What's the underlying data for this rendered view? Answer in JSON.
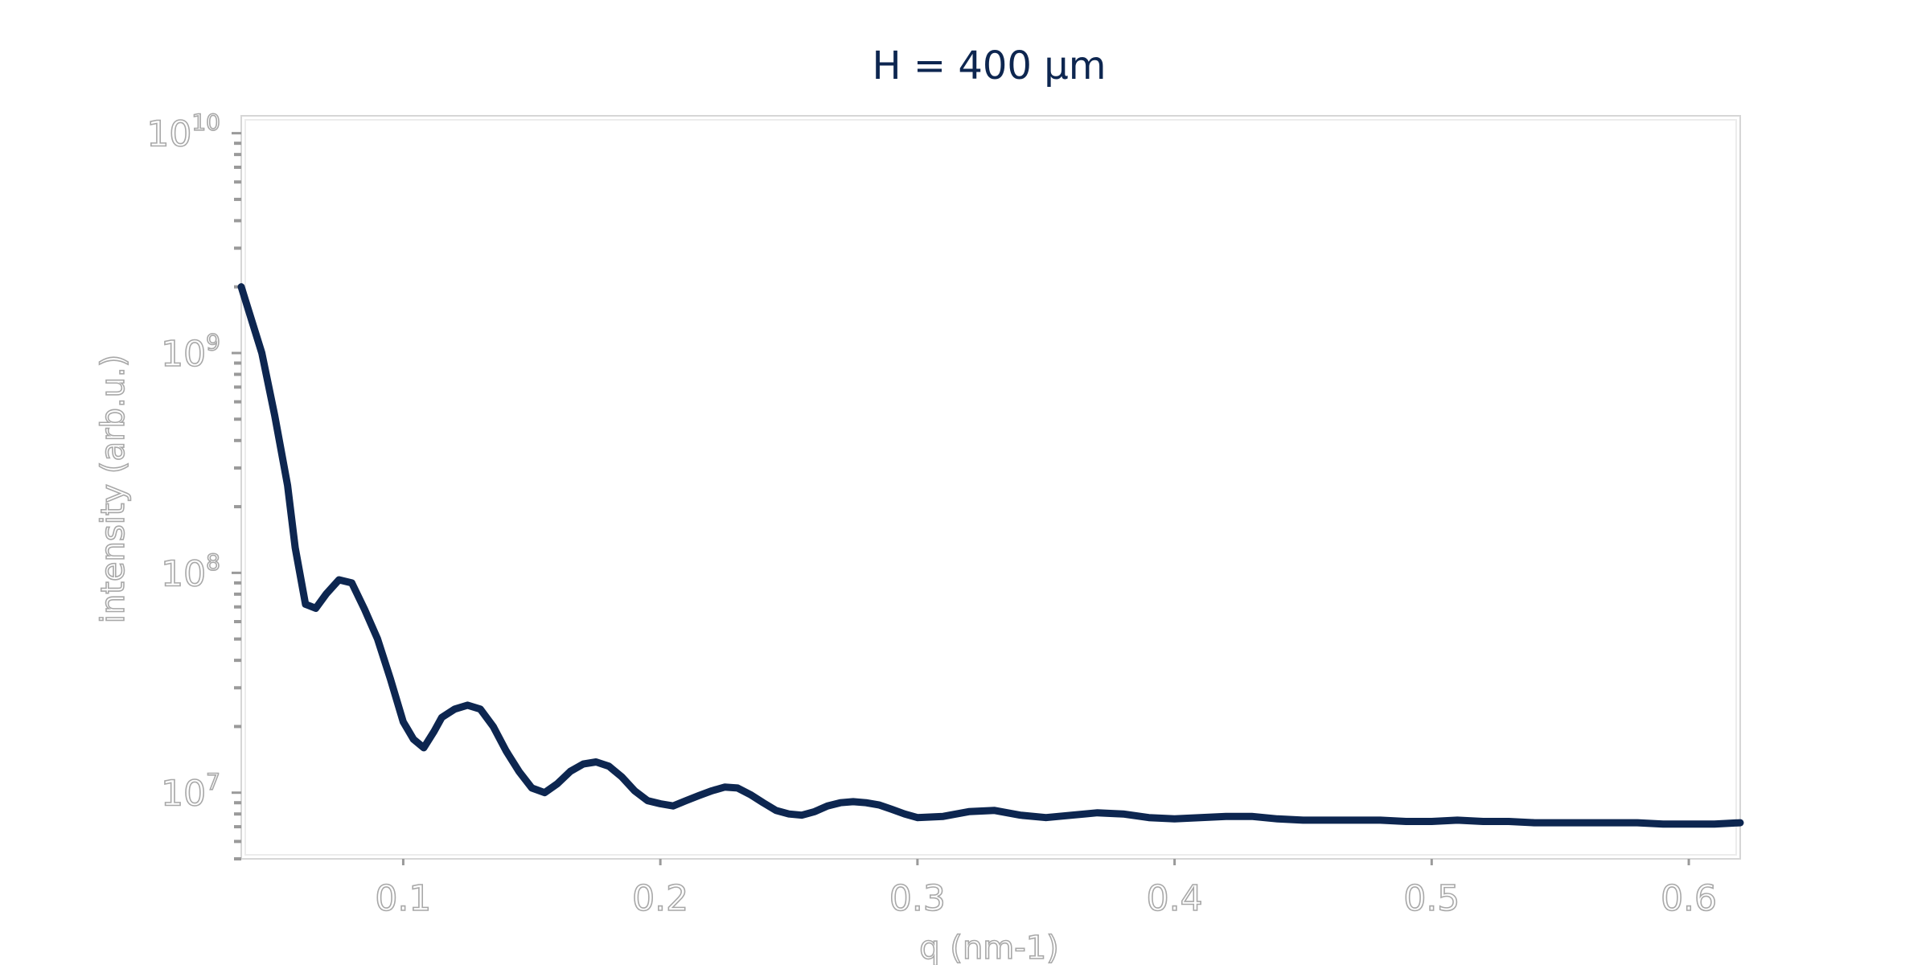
{
  "chart_data": {
    "type": "line",
    "title": "H = 400 μm",
    "xlabel": "q (nm-1)",
    "ylabel": "intensity (arb.u.)",
    "x_scale": "linear",
    "y_scale": "log",
    "xlim": [
      0.037,
      0.62
    ],
    "ylim": [
      5000000,
      12000000000
    ],
    "x_ticks": [
      {
        "value": 0.1,
        "label": "0.1"
      },
      {
        "value": 0.2,
        "label": "0.2"
      },
      {
        "value": 0.3,
        "label": "0.3"
      },
      {
        "value": 0.4,
        "label": "0.4"
      },
      {
        "value": 0.5,
        "label": "0.5"
      },
      {
        "value": 0.6,
        "label": "0.6"
      }
    ],
    "y_ticks": [
      {
        "value": 10000000,
        "base": "10",
        "exponent": "7"
      },
      {
        "value": 100000000,
        "base": "10",
        "exponent": "8"
      },
      {
        "value": 1000000000,
        "base": "10",
        "exponent": "9"
      },
      {
        "value": 10000000000,
        "base": "10",
        "exponent": "10"
      }
    ],
    "grid": false,
    "line_color": "#0d2650",
    "series": [
      {
        "x": [
          0.037,
          0.045,
          0.05,
          0.055,
          0.058,
          0.062,
          0.066,
          0.07,
          0.075,
          0.08,
          0.085,
          0.09,
          0.095,
          0.1,
          0.104,
          0.108,
          0.112,
          0.115,
          0.12,
          0.125,
          0.13,
          0.135,
          0.14,
          0.145,
          0.15,
          0.155,
          0.16,
          0.165,
          0.17,
          0.175,
          0.18,
          0.185,
          0.19,
          0.195,
          0.2,
          0.205,
          0.21,
          0.215,
          0.22,
          0.225,
          0.23,
          0.235,
          0.24,
          0.245,
          0.25,
          0.255,
          0.26,
          0.265,
          0.27,
          0.275,
          0.28,
          0.285,
          0.29,
          0.295,
          0.3,
          0.31,
          0.32,
          0.33,
          0.34,
          0.35,
          0.36,
          0.37,
          0.38,
          0.39,
          0.4,
          0.41,
          0.42,
          0.43,
          0.44,
          0.45,
          0.46,
          0.47,
          0.48,
          0.49,
          0.5,
          0.51,
          0.52,
          0.53,
          0.54,
          0.55,
          0.56,
          0.57,
          0.58,
          0.59,
          0.6,
          0.61,
          0.62
        ],
        "y": [
          2000000000,
          1000000000,
          520000000,
          250000000,
          130000000,
          72000000,
          69000000,
          80000000,
          93000000,
          90000000,
          68000000,
          50000000,
          33000000,
          21000000,
          17500000,
          16000000,
          19000000,
          22000000,
          24000000,
          25000000,
          24000000,
          20000000,
          15500000,
          12500000,
          10500000,
          10000000,
          11000000,
          12500000,
          13500000,
          13800000,
          13200000,
          11800000,
          10200000,
          9200000,
          8900000,
          8700000,
          9200000,
          9700000,
          10200000,
          10600000,
          10500000,
          9800000,
          9000000,
          8300000,
          8000000,
          7900000,
          8200000,
          8700000,
          9000000,
          9100000,
          9000000,
          8800000,
          8400000,
          8000000,
          7700000,
          7800000,
          8200000,
          8300000,
          7900000,
          7700000,
          7900000,
          8100000,
          8000000,
          7700000,
          7600000,
          7700000,
          7800000,
          7800000,
          7600000,
          7500000,
          7500000,
          7500000,
          7500000,
          7400000,
          7400000,
          7500000,
          7400000,
          7400000,
          7300000,
          7300000,
          7300000,
          7300000,
          7300000,
          7200000,
          7200000,
          7200000,
          7300000
        ]
      }
    ]
  }
}
